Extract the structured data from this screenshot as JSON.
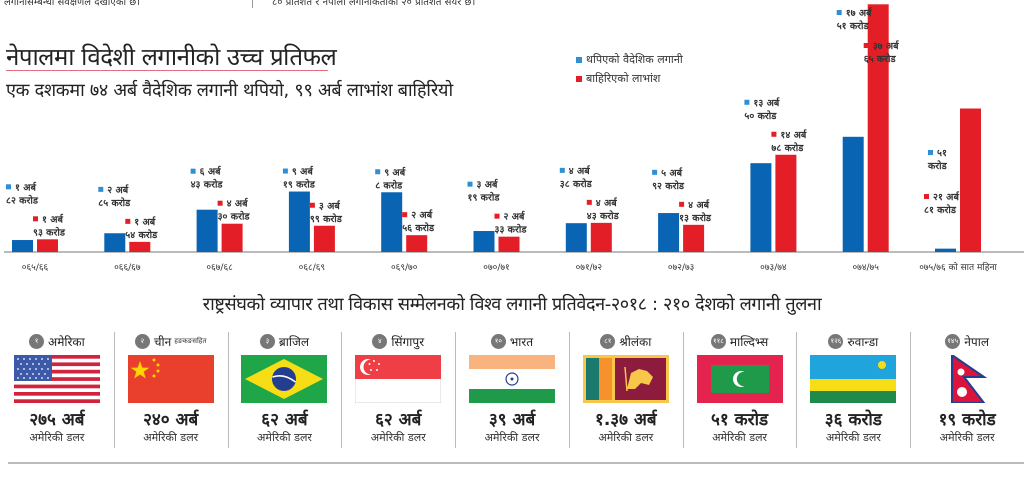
{
  "top_fragments": {
    "left": "लगानीसम्बन्धी सर्वेक्षणले देखाएको छ।",
    "right": "८० प्रतिशत र नेपाली लगानीकर्ताको २० प्रतिशत सेयर छ।"
  },
  "header": {
    "title": "नेपालमा विदेशी लगानीको उच्च प्रतिफल",
    "subtitle": "एक दशकमा ७४ अर्ब वैदेशिक लगानी थपियो, ९९ अर्ब लाभांश बाहिरियो"
  },
  "colors": {
    "blue": "#0a64b4",
    "red": "#e41e26",
    "label_blue": "#2f8fd6"
  },
  "chart_data": {
    "type": "bar",
    "title": "नेपालमा विदेशी लगानीको उच्च प्रतिफल",
    "subtitle": "एक दशकमा ७४ अर्ब वैदेशिक लगानी थपियो, ९९ अर्ब लाभांश बाहिरियो",
    "xlabel": "",
    "ylabel": "",
    "unit": "अर्ब रुपैयाँ",
    "legend_position": "top-right",
    "grid": false,
    "ylim": [
      0,
      38
    ],
    "categories": [
      "०६५/६६",
      "०६६/६७",
      "०६७/६८",
      "०६८/६९",
      "०६९/७०",
      "०७०/७१",
      "०७१/७२",
      "०७२/७३",
      "०७३/७४",
      "०७४/७५",
      "०७५/७६ को सात महिना"
    ],
    "series": [
      {
        "name": "थपिएको वैदेशिक लगानी",
        "color": "#0a64b4",
        "values": [
          1.82,
          2.85,
          6.43,
          9.19,
          9.08,
          3.19,
          4.38,
          5.92,
          13.5,
          17.51,
          0.51
        ],
        "labels": [
          [
            "१ अर्ब",
            "८२ करोड"
          ],
          [
            "२ अर्ब",
            "८५ करोड"
          ],
          [
            "६ अर्ब",
            "४३ करोड"
          ],
          [
            "९ अर्ब",
            "१९ करोड"
          ],
          [
            "९ अर्ब",
            "८ करोड"
          ],
          [
            "३ अर्ब",
            "१९ करोड"
          ],
          [
            "४ अर्ब",
            "३८ करोड"
          ],
          [
            "५ अर्ब",
            "९२ करोड"
          ],
          [
            "१३ अर्ब",
            "५० करोड"
          ],
          [
            "१७ अर्ब",
            "५१ करोड"
          ],
          [
            "५१",
            "करोड"
          ]
        ]
      },
      {
        "name": "बाहिरिएको लाभांश",
        "color": "#e41e26",
        "values": [
          1.93,
          1.54,
          4.3,
          3.99,
          2.56,
          2.33,
          4.43,
          4.13,
          14.78,
          37.65,
          21.81
        ],
        "labels": [
          [
            "१ अर्ब",
            "९३ करोड"
          ],
          [
            "१ अर्ब",
            "५४ करोड"
          ],
          [
            "४ अर्ब",
            "३० करोड"
          ],
          [
            "३ अर्ब",
            "९९ करोड"
          ],
          [
            "२ अर्ब",
            "५६ करोड"
          ],
          [
            "२ अर्ब",
            "३३ करोड"
          ],
          [
            "४ अर्ब",
            "४३ करोड"
          ],
          [
            "४ अर्ब",
            "१३ करोड"
          ],
          [
            "१४ अर्ब",
            "७८ करोड"
          ],
          [
            "३७ अर्ब",
            "६५ करोड"
          ],
          [
            "२१ अर्ब",
            "८१ करोड"
          ]
        ]
      }
    ]
  },
  "comparison": {
    "title": "राष्ट्रसंघको व्यापार तथा विकास सम्मेलनको विश्व लगानी प्रतिवेदन-२०१८ : २१० देशको लगानी तुलना",
    "countries": [
      {
        "rank": "१",
        "name": "अमेरिका",
        "note": "",
        "flag": "usa-flag",
        "value": "२७५ अर्ब",
        "unit": "अमेरिकी डलर"
      },
      {
        "rank": "२",
        "name": "चीन",
        "note": "हङकङसहित",
        "flag": "china-flag",
        "value": "२४० अर्ब",
        "unit": "अमेरिकी डलर"
      },
      {
        "rank": "३",
        "name": "ब्राजिल",
        "note": "",
        "flag": "brazil-flag",
        "value": "६२ अर्ब",
        "unit": "अमेरिकी डलर"
      },
      {
        "rank": "४",
        "name": "सिंगापुर",
        "note": "",
        "flag": "singapore-flag",
        "value": "६२ अर्ब",
        "unit": "अमेरिकी डलर"
      },
      {
        "rank": "१०",
        "name": "भारत",
        "note": "",
        "flag": "india-flag",
        "value": "३९ अर्ब",
        "unit": "अमेरिकी डलर"
      },
      {
        "rank": "८१",
        "name": "श्रीलंका",
        "note": "",
        "flag": "srilanka-flag",
        "value": "१.३७ अर्ब",
        "unit": "अमेरिकी डलर"
      },
      {
        "rank": "११८",
        "name": "माल्दिभ्स",
        "note": "",
        "flag": "maldives-flag",
        "value": "५१ करोड",
        "unit": "अमेरिकी डलर"
      },
      {
        "rank": "१२६",
        "name": "रुवान्डा",
        "note": "",
        "flag": "rwanda-flag",
        "value": "३६ करोड",
        "unit": "अमेरिकी डलर"
      },
      {
        "rank": "१४५",
        "name": "नेपाल",
        "note": "",
        "flag": "nepal-flag",
        "value": "१९ करोड",
        "unit": "अमेरिकी डलर"
      }
    ]
  }
}
